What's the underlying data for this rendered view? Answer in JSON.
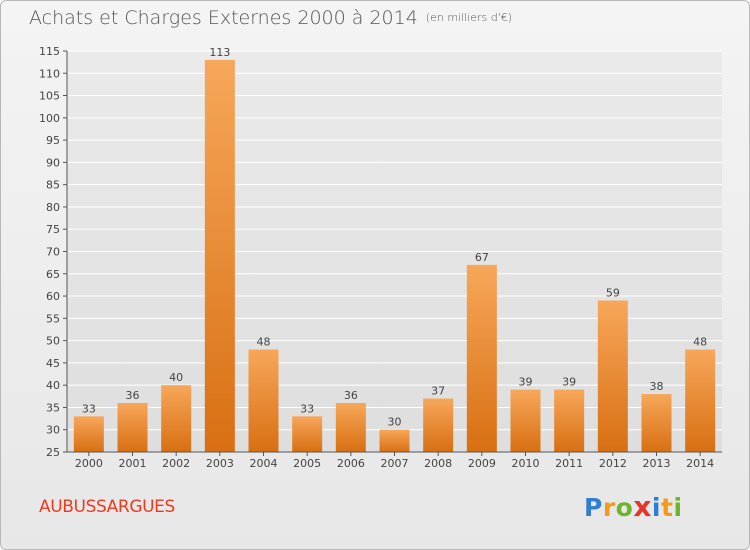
{
  "title": "Achats et Charges Externes 2000 à 2014",
  "subtitle": "(en milliers d'€)",
  "commune": "AUBUSSARGUES",
  "logo": {
    "letters": [
      "P",
      "r",
      "o",
      "x",
      "i",
      "t",
      "i"
    ],
    "colors": [
      "#2e7fd1",
      "#f29a1a",
      "#6cb52b",
      "#e8352b",
      "#2e7fd1",
      "#f29a1a",
      "#6cb52b"
    ]
  },
  "colors": {
    "bar": "#f28c28",
    "bar_dark": "#d06a10",
    "axis": "#444444",
    "grid": "#ffffff"
  },
  "chart_data": {
    "type": "bar",
    "title": "Achats et Charges Externes 2000 à 2014",
    "subtitle": "(en milliers d'€)",
    "xlabel": "",
    "ylabel": "",
    "categories": [
      "2000",
      "2001",
      "2002",
      "2003",
      "2004",
      "2005",
      "2006",
      "2007",
      "2008",
      "2009",
      "2010",
      "2011",
      "2012",
      "2013",
      "2014"
    ],
    "values": [
      33,
      36,
      40,
      113,
      48,
      33,
      36,
      30,
      37,
      67,
      39,
      39,
      59,
      38,
      48
    ],
    "ylim": [
      25,
      115
    ],
    "yticks": [
      25,
      30,
      35,
      40,
      45,
      50,
      55,
      60,
      65,
      70,
      75,
      80,
      85,
      90,
      95,
      100,
      105,
      110,
      115
    ],
    "grid": true,
    "legend": "none"
  }
}
